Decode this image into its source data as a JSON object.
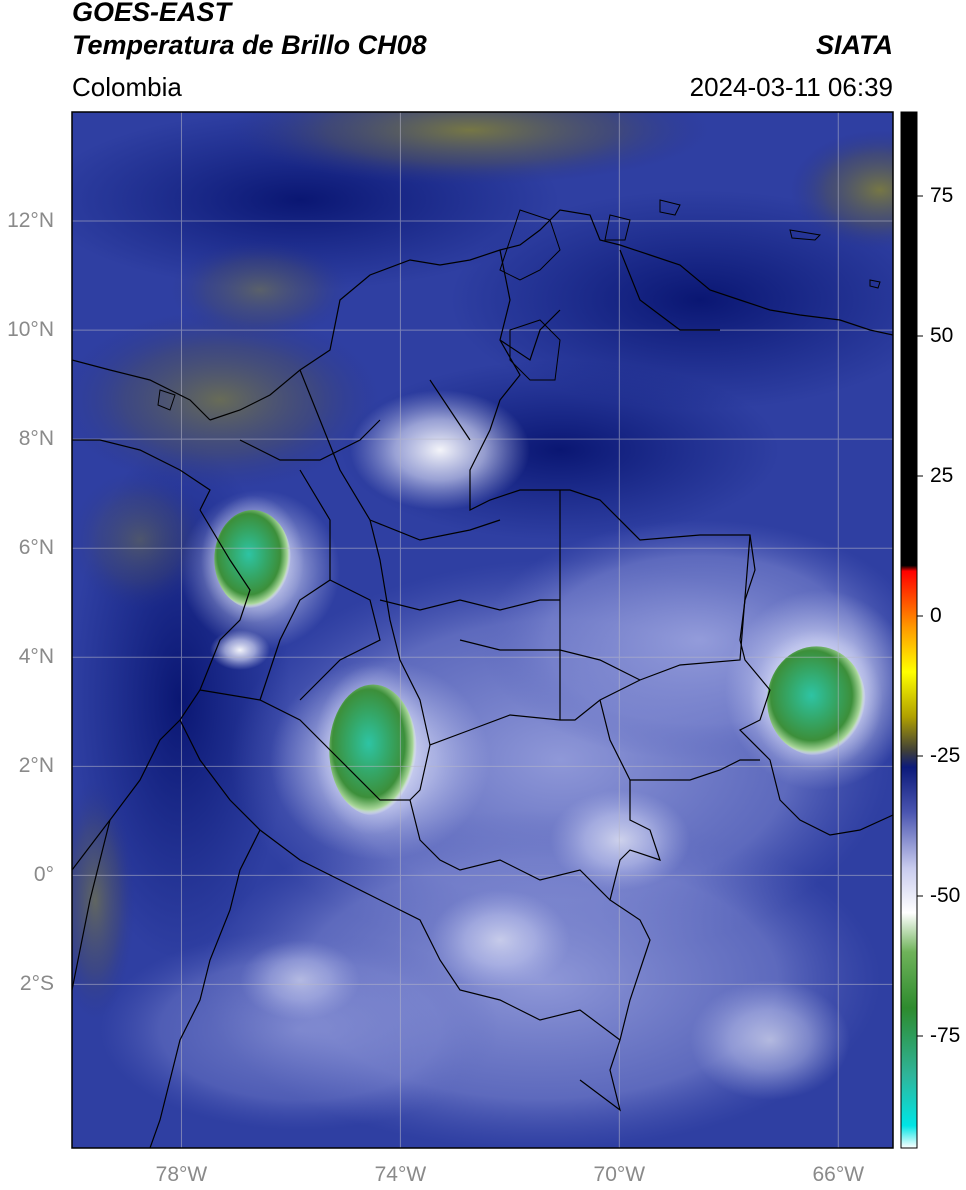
{
  "header": {
    "satellite": "GOES-EAST",
    "product": "Temperatura de Brillo CH08",
    "brand": "SIATA",
    "region": "Colombia",
    "datetime": "2024-03-11 06:39"
  },
  "map": {
    "lon_range": [
      -80,
      -65
    ],
    "lat_range": [
      -5,
      14
    ],
    "gridlines": true,
    "lat_ticks": [
      "12°N",
      "10°N",
      "8°N",
      "6°N",
      "4°N",
      "2°N",
      "0°",
      "2°S"
    ],
    "lat_values": [
      12,
      10,
      8,
      6,
      4,
      2,
      0,
      -2
    ],
    "lon_ticks": [
      "78°W",
      "74°W",
      "70°W",
      "66°W"
    ],
    "lon_values": [
      -78,
      -74,
      -70,
      -66
    ],
    "background_colors": {
      "deep": "#0b1a78",
      "mid": "#2f3fa2",
      "light": "#a7aee0",
      "warm": "#6a6b3a",
      "cold_white": "#f2f4ff"
    },
    "cold_cloud_cells": [
      {
        "name": "cell-west-colombia",
        "lon": -76.7,
        "lat": 5.8,
        "r_lon": 0.7,
        "r_lat": 0.9
      },
      {
        "name": "cell-south-central",
        "lon": -74.5,
        "lat": 2.3,
        "r_lon": 0.8,
        "r_lat": 1.2
      },
      {
        "name": "cell-east-venezuela",
        "lon": -66.4,
        "lat": 3.2,
        "r_lon": 0.9,
        "r_lat": 1.0
      }
    ]
  },
  "colorbar": {
    "vmin": -95,
    "vmax": 90,
    "ticks": [
      "75",
      "50",
      "25",
      "0",
      "-25",
      "-50",
      "-75"
    ],
    "tick_values": [
      75,
      50,
      25,
      0,
      -25,
      -50,
      -75
    ],
    "stops": [
      {
        "v": -95,
        "c": "#ffffff"
      },
      {
        "v": -91,
        "c": "#00e5e5"
      },
      {
        "v": -82,
        "c": "#2fb59a"
      },
      {
        "v": -70,
        "c": "#2e8b2e"
      },
      {
        "v": -60,
        "c": "#6fb35a"
      },
      {
        "v": -53,
        "c": "#ffffff"
      },
      {
        "v": -45,
        "c": "#c8cbee"
      },
      {
        "v": -35,
        "c": "#4a55b0"
      },
      {
        "v": -27,
        "c": "#0c1a7a"
      },
      {
        "v": -24,
        "c": "#404038"
      },
      {
        "v": -18,
        "c": "#b0a000"
      },
      {
        "v": -10,
        "c": "#ffff00"
      },
      {
        "v": -2,
        "c": "#ff9900"
      },
      {
        "v": 8,
        "c": "#ff0000"
      },
      {
        "v": 9,
        "c": "#000000"
      },
      {
        "v": 90,
        "c": "#000000"
      }
    ]
  }
}
